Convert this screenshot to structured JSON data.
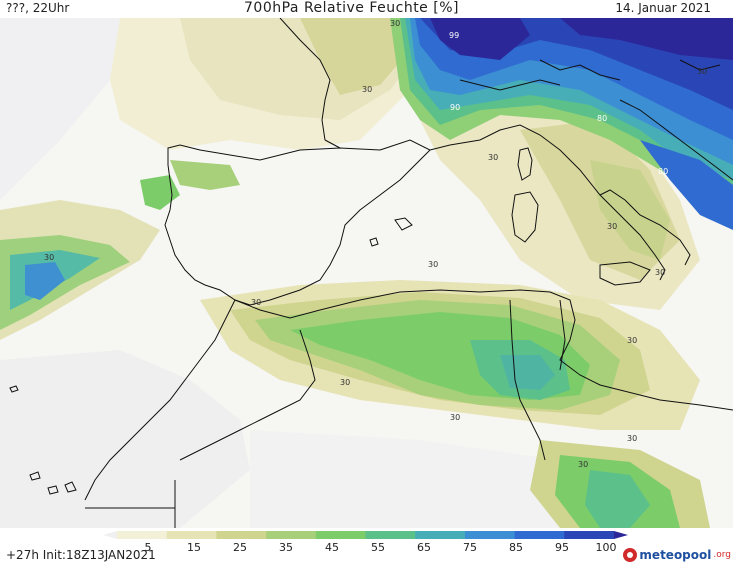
{
  "header": {
    "left_text": "???, 22Uhr",
    "title": "700hPa Relative Feuchte [%]",
    "date": "14. Januar 2021"
  },
  "footer": {
    "run_text": "+27h Init:18Z13JAN2021",
    "logo_main": "meteopool",
    "logo_suffix": ".org"
  },
  "colorbar": {
    "ticks": [
      "5",
      "15",
      "25",
      "35",
      "45",
      "55",
      "65",
      "75",
      "85",
      "95",
      "100"
    ],
    "colors": [
      "#f0f0f0",
      "#f3f0d8",
      "#e6e3b5",
      "#cfd48f",
      "#a8d07a",
      "#7ccc6a",
      "#5cc08a",
      "#47aeb8",
      "#3c8fd3",
      "#2f6bd0",
      "#2a45b5",
      "#2c2799"
    ]
  },
  "map": {
    "contour_labels": [
      "30",
      "30",
      "30",
      "30",
      "30",
      "30",
      "30",
      "30",
      "30",
      "30",
      "30",
      "30",
      "30",
      "30",
      "90",
      "99",
      "80",
      "80"
    ]
  }
}
